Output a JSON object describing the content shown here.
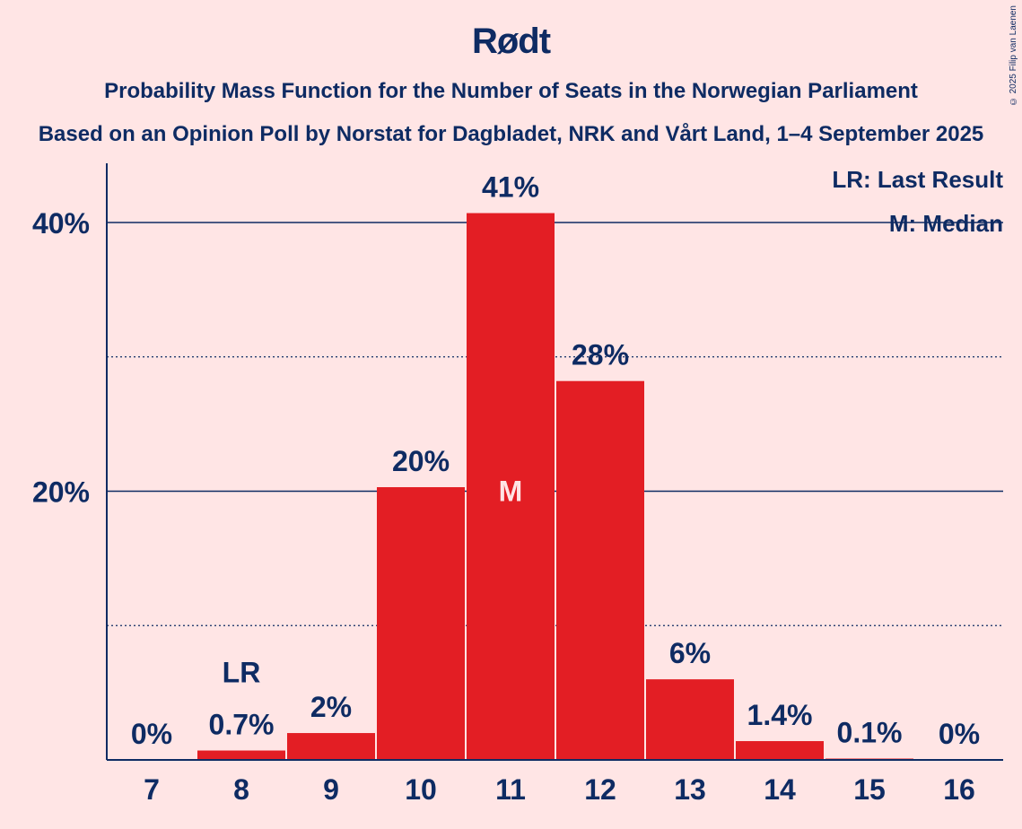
{
  "header": {
    "title": "Rødt",
    "subtitle": "Probability Mass Function for the Number of Seats in the Norwegian Parliament",
    "subtitle2": "Based on an Opinion Poll by Norstat for Dagbladet, NRK and Vårt Land, 1–4 September 2025",
    "copyright": "© 2025 Filip van Laenen"
  },
  "legend": {
    "last_result": "LR: Last Result",
    "median": "M: Median"
  },
  "colors": {
    "background": "#FFE5E5",
    "bar": "#E31E24",
    "text": "#0E2B63"
  },
  "chart_data": {
    "type": "bar",
    "categories": [
      "7",
      "8",
      "9",
      "10",
      "11",
      "12",
      "13",
      "14",
      "15",
      "16"
    ],
    "values": [
      0,
      0.7,
      2,
      20.3,
      40.7,
      28.2,
      6,
      1.4,
      0.1,
      0
    ],
    "data_labels": [
      "0%",
      "0.7%",
      "2%",
      "20%",
      "41%",
      "28%",
      "6%",
      "1.4%",
      "0.1%",
      "0%"
    ],
    "ylim": [
      0,
      44.5
    ],
    "yticks": [
      {
        "value": 20,
        "label": "20%",
        "style": "solid"
      },
      {
        "value": 40,
        "label": "40%",
        "style": "solid"
      }
    ],
    "minor_gridlines": [
      10,
      30
    ],
    "last_result": {
      "category": "8",
      "label": "LR"
    },
    "median": {
      "category": "11",
      "label": "M"
    },
    "legend_position": "top-right",
    "grid": true
  }
}
